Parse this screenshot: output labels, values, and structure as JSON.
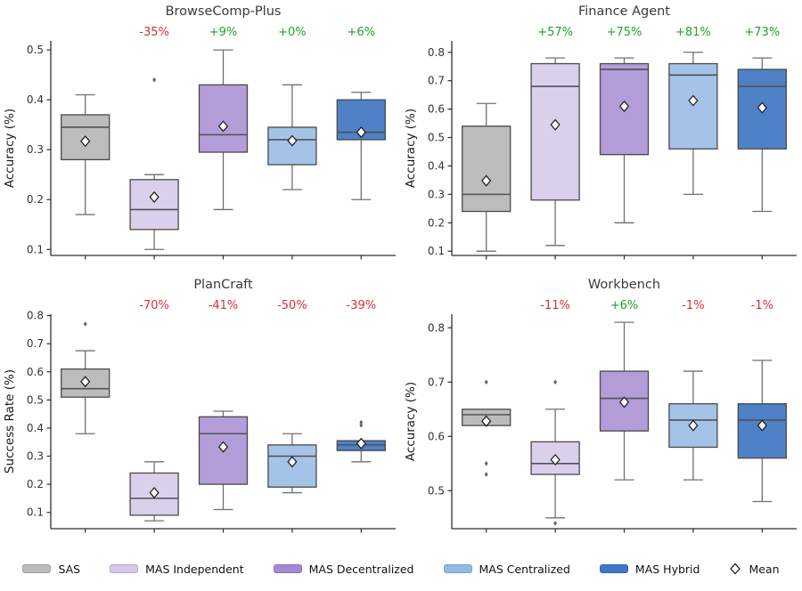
{
  "style": {
    "background": "#ffffff",
    "spine": "#2f2f2f",
    "tick_label": "#333333",
    "title_color": "#3a3a3a",
    "ylabel_color": "#1a1a1a",
    "box_edge": "#4a4a4a",
    "whisker": "#707070",
    "median": "#50505a",
    "outlier": "#666666",
    "mean_fill": "#ffffff",
    "mean_edge": "#1a1a1a",
    "positive_color": "#22a02a",
    "negative_color": "#d93030"
  },
  "series_styles": {
    "SAS": {
      "fill": "#bcbcbc"
    },
    "MAS Independent": {
      "fill": "#dad0ec"
    },
    "MAS Decentralized": {
      "fill": "#b29dd8"
    },
    "MAS Centralized": {
      "fill": "#a5c3e7"
    },
    "MAS Hybrid": {
      "fill": "#4e81c6"
    }
  },
  "chart_data": [
    {
      "type": "box",
      "title": "BrowseComp-Plus",
      "ylabel": "Accuracy (%)",
      "ylim": [
        0.088,
        0.518
      ],
      "yticks": [
        0.1,
        0.2,
        0.3,
        0.4,
        0.5
      ],
      "grid": false,
      "legend_position": "figure-bottom",
      "boxes": [
        {
          "series": "SAS",
          "whisker_low": 0.17,
          "q1": 0.28,
          "median": 0.345,
          "q3": 0.37,
          "whisker_high": 0.41,
          "mean": 0.317,
          "outliers": [],
          "annotation": null
        },
        {
          "series": "MAS Independent",
          "whisker_low": 0.1,
          "q1": 0.14,
          "median": 0.18,
          "q3": 0.24,
          "whisker_high": 0.25,
          "mean": 0.205,
          "outliers": [
            0.44
          ],
          "annotation": {
            "text": "-35%",
            "color": "#d93030"
          }
        },
        {
          "series": "MAS Decentralized",
          "whisker_low": 0.18,
          "q1": 0.295,
          "median": 0.33,
          "q3": 0.43,
          "whisker_high": 0.5,
          "mean": 0.347,
          "outliers": [],
          "annotation": {
            "text": "+9%",
            "color": "#22a02a"
          }
        },
        {
          "series": "MAS Centralized",
          "whisker_low": 0.22,
          "q1": 0.27,
          "median": 0.32,
          "q3": 0.345,
          "whisker_high": 0.43,
          "mean": 0.318,
          "outliers": [],
          "annotation": {
            "text": "+0%",
            "color": "#22a02a"
          }
        },
        {
          "series": "MAS Hybrid",
          "whisker_low": 0.2,
          "q1": 0.32,
          "median": 0.335,
          "q3": 0.4,
          "whisker_high": 0.415,
          "mean": 0.335,
          "outliers": [],
          "annotation": {
            "text": "+6%",
            "color": "#22a02a"
          }
        }
      ]
    },
    {
      "type": "box",
      "title": "Finance Agent",
      "ylabel": "Accuracy (%)",
      "ylim": [
        0.085,
        0.84
      ],
      "yticks": [
        0.1,
        0.2,
        0.3,
        0.4,
        0.5,
        0.6,
        0.7,
        0.8
      ],
      "grid": false,
      "legend_position": "figure-bottom",
      "boxes": [
        {
          "series": "SAS",
          "whisker_low": 0.1,
          "q1": 0.24,
          "median": 0.3,
          "q3": 0.54,
          "whisker_high": 0.62,
          "mean": 0.348,
          "outliers": [],
          "annotation": null
        },
        {
          "series": "MAS Independent",
          "whisker_low": 0.12,
          "q1": 0.28,
          "median": 0.68,
          "q3": 0.76,
          "whisker_high": 0.78,
          "mean": 0.545,
          "outliers": [],
          "annotation": {
            "text": "+57%",
            "color": "#22a02a"
          }
        },
        {
          "series": "MAS Decentralized",
          "whisker_low": 0.2,
          "q1": 0.44,
          "median": 0.74,
          "q3": 0.76,
          "whisker_high": 0.78,
          "mean": 0.61,
          "outliers": [],
          "annotation": {
            "text": "+75%",
            "color": "#22a02a"
          }
        },
        {
          "series": "MAS Centralized",
          "whisker_low": 0.3,
          "q1": 0.46,
          "median": 0.72,
          "q3": 0.76,
          "whisker_high": 0.8,
          "mean": 0.63,
          "outliers": [],
          "annotation": {
            "text": "+81%",
            "color": "#22a02a"
          }
        },
        {
          "series": "MAS Hybrid",
          "whisker_low": 0.24,
          "q1": 0.46,
          "median": 0.68,
          "q3": 0.74,
          "whisker_high": 0.78,
          "mean": 0.605,
          "outliers": [],
          "annotation": {
            "text": "+73%",
            "color": "#22a02a"
          }
        }
      ]
    },
    {
      "type": "box",
      "title": "PlanCraft",
      "ylabel": "Success Rate (%)",
      "ylim": [
        0.042,
        0.805
      ],
      "yticks": [
        0.1,
        0.2,
        0.3,
        0.4,
        0.5,
        0.6,
        0.7,
        0.8
      ],
      "grid": false,
      "legend_position": "figure-bottom",
      "boxes": [
        {
          "series": "SAS",
          "whisker_low": 0.38,
          "q1": 0.51,
          "median": 0.54,
          "q3": 0.61,
          "whisker_high": 0.675,
          "mean": 0.565,
          "outliers": [
            0.77
          ],
          "annotation": null
        },
        {
          "series": "MAS Independent",
          "whisker_low": 0.07,
          "q1": 0.09,
          "median": 0.15,
          "q3": 0.24,
          "whisker_high": 0.28,
          "mean": 0.17,
          "outliers": [],
          "annotation": {
            "text": "-70%",
            "color": "#d93030"
          }
        },
        {
          "series": "MAS Decentralized",
          "whisker_low": 0.11,
          "q1": 0.2,
          "median": 0.38,
          "q3": 0.44,
          "whisker_high": 0.46,
          "mean": 0.333,
          "outliers": [],
          "annotation": {
            "text": "-41%",
            "color": "#d93030"
          }
        },
        {
          "series": "MAS Centralized",
          "whisker_low": 0.17,
          "q1": 0.19,
          "median": 0.3,
          "q3": 0.34,
          "whisker_high": 0.38,
          "mean": 0.28,
          "outliers": [],
          "annotation": {
            "text": "-50%",
            "color": "#d93030"
          }
        },
        {
          "series": "MAS Hybrid",
          "whisker_low": 0.28,
          "q1": 0.32,
          "median": 0.34,
          "q3": 0.355,
          "whisker_high": 0.355,
          "mean": 0.345,
          "outliers": [
            0.41,
            0.42
          ],
          "annotation": {
            "text": "-39%",
            "color": "#d93030"
          }
        }
      ]
    },
    {
      "type": "box",
      "title": "Workbench",
      "ylabel": "Accuracy (%)",
      "ylim": [
        0.43,
        0.825
      ],
      "yticks": [
        0.5,
        0.6,
        0.7,
        0.8
      ],
      "grid": false,
      "legend_position": "figure-bottom",
      "boxes": [
        {
          "series": "SAS",
          "whisker_low": 0.62,
          "q1": 0.62,
          "median": 0.64,
          "q3": 0.65,
          "whisker_high": 0.65,
          "mean": 0.628,
          "outliers": [
            0.7,
            0.55,
            0.53
          ],
          "annotation": null
        },
        {
          "series": "MAS Independent",
          "whisker_low": 0.45,
          "q1": 0.53,
          "median": 0.55,
          "q3": 0.59,
          "whisker_high": 0.65,
          "mean": 0.557,
          "outliers": [
            0.7,
            0.44
          ],
          "annotation": {
            "text": "-11%",
            "color": "#d93030"
          }
        },
        {
          "series": "MAS Decentralized",
          "whisker_low": 0.52,
          "q1": 0.61,
          "median": 0.67,
          "q3": 0.72,
          "whisker_high": 0.81,
          "mean": 0.663,
          "outliers": [],
          "annotation": {
            "text": "+6%",
            "color": "#22a02a"
          }
        },
        {
          "series": "MAS Centralized",
          "whisker_low": 0.52,
          "q1": 0.58,
          "median": 0.63,
          "q3": 0.66,
          "whisker_high": 0.72,
          "mean": 0.62,
          "outliers": [],
          "annotation": {
            "text": "-1%",
            "color": "#d93030"
          }
        },
        {
          "series": "MAS Hybrid",
          "whisker_low": 0.48,
          "q1": 0.56,
          "median": 0.63,
          "q3": 0.66,
          "whisker_high": 0.74,
          "mean": 0.62,
          "outliers": [],
          "annotation": {
            "text": "-1%",
            "color": "#d93030"
          }
        }
      ]
    }
  ],
  "legend": {
    "items": [
      {
        "label": "SAS",
        "color": "#bcbcbc"
      },
      {
        "label": "MAS Independent",
        "color": "#d5c8ec"
      },
      {
        "label": "MAS Decentralized",
        "color": "#a089d6"
      },
      {
        "label": "MAS Centralized",
        "color": "#92bbe3"
      },
      {
        "label": "MAS Hybrid",
        "color": "#3d78c9"
      },
      {
        "label": "Mean",
        "marker": "diamond"
      }
    ]
  }
}
